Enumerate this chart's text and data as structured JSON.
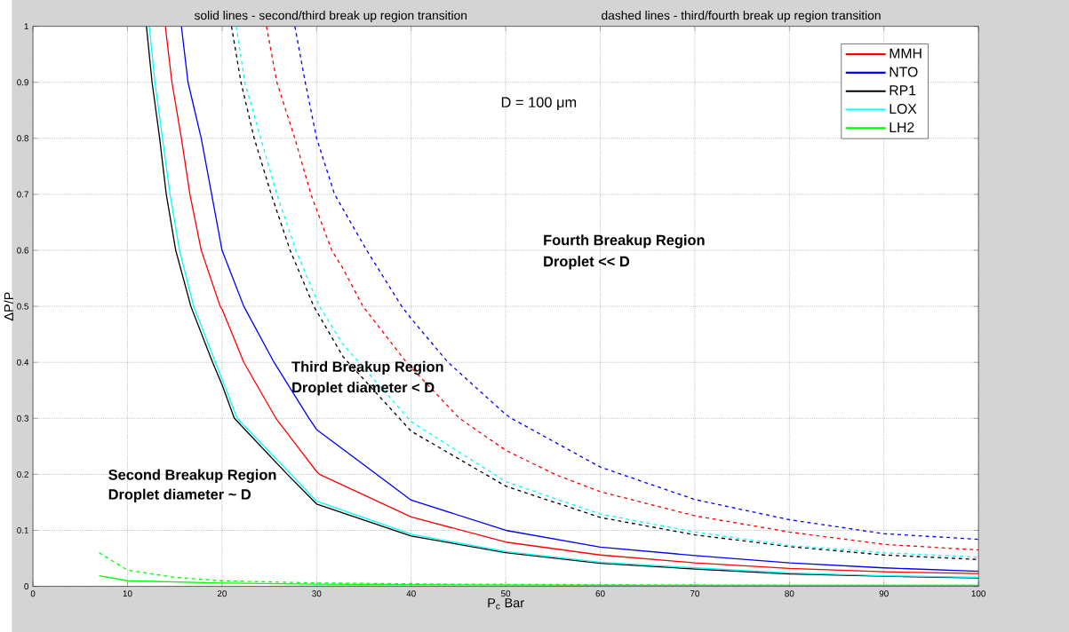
{
  "chart_data": {
    "type": "line",
    "title": "solid lines - second/third break up region transition",
    "subtitle": "dashed lines - third/fourth break up region transition",
    "xlabel": "P$_{c}$ Bar",
    "ylabel": "ΔP/P",
    "annotations": [
      "D = 100 μm",
      "Fourth Breakup Region",
      "Droplet << D",
      "Third Breakup Region",
      "Droplet diameter < D",
      "Second Breakup Region",
      "Droplet diameter ~ D"
    ],
    "xlim": [
      0,
      100
    ],
    "ylim": [
      0,
      1
    ],
    "xticks": [
      0,
      10,
      20,
      30,
      40,
      50,
      60,
      70,
      80,
      90,
      100
    ],
    "yticks": [
      0,
      0.1,
      0.2,
      0.3,
      0.4,
      0.5,
      0.6,
      0.7,
      0.8,
      0.9,
      1
    ],
    "grid": true,
    "legend": "top right",
    "line_style": "solid",
    "series": [
      {
        "name": "MMH",
        "color": "#ff0000",
        "x": [
          14.0,
          14.7,
          15.7,
          16.6,
          17.8,
          19.8,
          20,
          22.3,
          25.7,
          30,
          30.3,
          40,
          50,
          60,
          70,
          80,
          90,
          100
        ],
        "values": [
          1.0,
          0.9,
          0.8,
          0.7,
          0.6,
          0.5,
          0.495,
          0.4,
          0.3,
          0.205,
          0.2,
          0.124,
          0.079,
          0.056,
          0.042,
          0.032,
          0.026,
          0.023
        ]
      },
      {
        "name": "NTO",
        "color": "#0000ff",
        "x": [
          15.7,
          16.4,
          17.8,
          18.9,
          20.0,
          22.3,
          25.5,
          29.2,
          30,
          40,
          50,
          60,
          70,
          80,
          90,
          100
        ],
        "values": [
          1.0,
          0.9,
          0.8,
          0.7,
          0.6,
          0.5,
          0.4,
          0.3,
          0.28,
          0.154,
          0.1,
          0.07,
          0.055,
          0.042,
          0.033,
          0.027
        ]
      },
      {
        "name": "RP1",
        "color": "#000000",
        "x": [
          12.0,
          12.6,
          13.4,
          14.1,
          15.1,
          16.7,
          19.0,
          20,
          21.3,
          26.9,
          30,
          40,
          50,
          60,
          70,
          80,
          90,
          100
        ],
        "values": [
          1.0,
          0.9,
          0.8,
          0.7,
          0.6,
          0.5,
          0.4,
          0.36,
          0.3,
          0.2,
          0.147,
          0.09,
          0.06,
          0.041,
          0.031,
          0.022,
          0.018,
          0.015
        ]
      },
      {
        "name": "LOX",
        "color": "#00ffff",
        "x": [
          12.3,
          12.9,
          13.7,
          14.5,
          15.5,
          17.0,
          19.3,
          20,
          21.6,
          27.3,
          30,
          40,
          50,
          60,
          70,
          80,
          90,
          100
        ],
        "values": [
          1.0,
          0.9,
          0.8,
          0.7,
          0.6,
          0.5,
          0.4,
          0.37,
          0.3,
          0.2,
          0.152,
          0.093,
          0.062,
          0.043,
          0.033,
          0.024,
          0.019,
          0.016
        ]
      },
      {
        "name": "LH2",
        "color": "#00ff00",
        "x": [
          7,
          10,
          20,
          30,
          40,
          60,
          80,
          100
        ],
        "values": [
          0.019,
          0.01,
          0.006,
          0.004,
          0.003,
          0.002,
          0.002,
          0.002
        ]
      },
      {
        "color": "#ff0000",
        "line_style": "dashed",
        "x": [
          24.7,
          25.8,
          27.7,
          29.4,
          31.6,
          32.8,
          34.9,
          39.5,
          40,
          45.1,
          50,
          55.2,
          60,
          70,
          80,
          90,
          100
        ],
        "values": [
          1.0,
          0.9,
          0.8,
          0.7,
          0.6,
          0.567,
          0.5,
          0.4,
          0.391,
          0.3,
          0.243,
          0.2,
          0.169,
          0.126,
          0.097,
          0.075,
          0.065
        ]
      },
      {
        "color": "#0000ff",
        "line_style": "dashed",
        "x": [
          27.7,
          28.8,
          30.0,
          31.9,
          35.3,
          39.0,
          40,
          43.9,
          50,
          50.6,
          60,
          70,
          80,
          90,
          100
        ],
        "values": [
          1.0,
          0.9,
          0.8,
          0.7,
          0.6,
          0.5,
          0.478,
          0.4,
          0.307,
          0.3,
          0.213,
          0.155,
          0.119,
          0.094,
          0.084
        ]
      },
      {
        "color": "#000000",
        "line_style": "dashed",
        "x": [
          21.0,
          22.0,
          23.4,
          25.2,
          27.2,
          29.7,
          32.8,
          40,
          50,
          60,
          70,
          80,
          90,
          100
        ],
        "values": [
          1.0,
          0.9,
          0.8,
          0.7,
          0.6,
          0.5,
          0.41,
          0.277,
          0.179,
          0.123,
          0.092,
          0.071,
          0.056,
          0.048
        ]
      },
      {
        "color": "#00ffff",
        "line_style": "dashed",
        "x": [
          21.5,
          22.4,
          24.1,
          25.8,
          27.8,
          30.3,
          32.8,
          40,
          50,
          60,
          70,
          80,
          90,
          100
        ],
        "values": [
          1.0,
          0.9,
          0.8,
          0.7,
          0.6,
          0.5,
          0.432,
          0.294,
          0.187,
          0.129,
          0.097,
          0.073,
          0.06,
          0.052
        ]
      },
      {
        "color": "#00ff00",
        "line_style": "dashed",
        "x": [
          7,
          10,
          15,
          20,
          30,
          44,
          60,
          80,
          100
        ],
        "values": [
          0.06,
          0.029,
          0.016,
          0.01,
          0.006,
          0.004,
          0.003,
          0.002,
          0.002
        ]
      }
    ]
  }
}
